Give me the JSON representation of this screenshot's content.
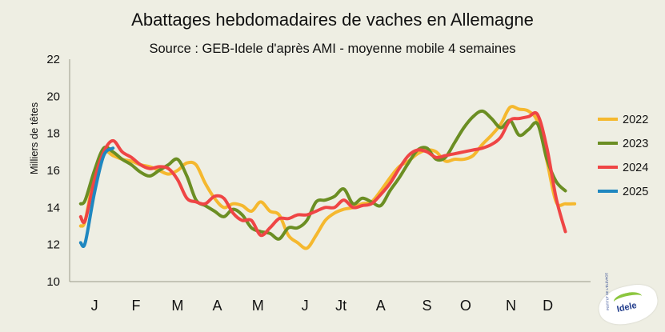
{
  "chart_data": {
    "type": "line",
    "title": "Abattages hebdomadaires de vaches en Allemagne",
    "subtitle": "Source : GEB-Idele d'après AMI - moyenne mobile 4 semaines",
    "xlabel": "",
    "ylabel": "Milliers de têtes",
    "ylim": [
      10,
      22
    ],
    "yticks": [
      10,
      12,
      14,
      16,
      18,
      20,
      22
    ],
    "xlim": [
      0,
      52
    ],
    "x_tick_labels": [
      {
        "label": "J",
        "week": 2
      },
      {
        "label": "F",
        "week": 6.5
      },
      {
        "label": "M",
        "week": 11
      },
      {
        "label": "A",
        "week": 15.3
      },
      {
        "label": "M",
        "week": 19.7
      },
      {
        "label": "J",
        "week": 24.8
      },
      {
        "label": "Jt",
        "week": 28.7
      },
      {
        "label": "A",
        "week": 33
      },
      {
        "label": "S",
        "week": 38
      },
      {
        "label": "O",
        "week": 42.2
      },
      {
        "label": "N",
        "week": 47.1
      },
      {
        "label": "D",
        "week": 51.1
      }
    ],
    "grid": false,
    "legend_position": "right",
    "series": [
      {
        "name": "2022",
        "color": "#f5b82e",
        "x": [
          0.5,
          1,
          2,
          3,
          4,
          5,
          6,
          7,
          8,
          9,
          10,
          11,
          12,
          13,
          14,
          15,
          16,
          17,
          18,
          19,
          20,
          21,
          22,
          23,
          24,
          25,
          26,
          27,
          28,
          29,
          30,
          31,
          32,
          33,
          34,
          35,
          36,
          37,
          38,
          39,
          40,
          41,
          42,
          43,
          44,
          45,
          46,
          47,
          48,
          49,
          50,
          51,
          52,
          53,
          54
        ],
        "y": [
          13.0,
          13.3,
          15.8,
          17.0,
          16.8,
          16.6,
          16.5,
          16.3,
          16.2,
          16.0,
          15.8,
          16.0,
          16.4,
          16.3,
          15.3,
          14.5,
          14.0,
          14.2,
          14.1,
          13.8,
          14.3,
          13.8,
          13.6,
          12.5,
          12.1,
          11.8,
          12.5,
          13.3,
          13.7,
          13.9,
          14.0,
          14.2,
          14.3,
          14.9,
          15.6,
          16.2,
          16.5,
          16.9,
          17.1,
          17.0,
          16.5,
          16.6,
          16.6,
          16.8,
          17.4,
          17.9,
          18.5,
          19.4,
          19.3,
          19.2,
          18.6,
          16.5,
          14.3,
          14.2,
          14.2
        ]
      },
      {
        "name": "2023",
        "color": "#6b8e23",
        "x": [
          0.5,
          1,
          2,
          3,
          4,
          5,
          6,
          7,
          8,
          9,
          10,
          11,
          12,
          13,
          14,
          15,
          16,
          17,
          18,
          19,
          20,
          21,
          22,
          23,
          24,
          25,
          26,
          27,
          28,
          29,
          30,
          31,
          32,
          33,
          34,
          35,
          36,
          37,
          38,
          39,
          40,
          41,
          42,
          43,
          44,
          45,
          46,
          47,
          48,
          49,
          50,
          51,
          52,
          53
        ],
        "y": [
          14.2,
          14.4,
          16.0,
          17.2,
          17.0,
          16.6,
          16.3,
          15.9,
          15.7,
          16.0,
          16.3,
          16.6,
          15.7,
          14.4,
          14.1,
          13.8,
          13.5,
          13.9,
          13.6,
          12.9,
          12.7,
          12.6,
          12.3,
          12.9,
          12.9,
          13.3,
          14.3,
          14.4,
          14.6,
          15.0,
          14.2,
          14.5,
          14.3,
          14.1,
          14.9,
          15.6,
          16.4,
          17.1,
          17.2,
          16.6,
          16.7,
          17.5,
          18.3,
          18.9,
          19.2,
          18.8,
          18.3,
          18.7,
          17.9,
          18.2,
          18.5,
          16.6,
          15.4,
          14.9
        ]
      },
      {
        "name": "2024",
        "color": "#ef4545",
        "x": [
          0.5,
          1,
          2,
          3,
          4,
          5,
          6,
          7,
          8,
          9,
          10,
          11,
          12,
          13,
          14,
          15,
          16,
          17,
          18,
          19,
          20,
          21,
          22,
          23,
          24,
          25,
          26,
          27,
          28,
          29,
          30,
          31,
          32,
          33,
          34,
          35,
          36,
          37,
          38,
          39,
          40,
          41,
          42,
          43,
          44,
          45,
          46,
          47,
          48,
          49,
          50,
          51,
          52,
          53
        ],
        "y": [
          13.5,
          13.3,
          15.5,
          17.0,
          17.6,
          17.0,
          16.7,
          16.3,
          16.1,
          16.2,
          16.1,
          15.5,
          14.5,
          14.3,
          14.2,
          14.6,
          14.5,
          13.7,
          13.3,
          13.3,
          12.5,
          12.9,
          13.4,
          13.4,
          13.6,
          13.6,
          13.8,
          14.0,
          14.0,
          14.4,
          14.0,
          14.1,
          14.2,
          14.7,
          15.3,
          16.1,
          16.8,
          17.1,
          17.0,
          16.7,
          16.8,
          16.9,
          17.0,
          17.1,
          17.2,
          17.4,
          17.8,
          18.7,
          18.8,
          18.9,
          19.0,
          17.2,
          14.5,
          12.7
        ]
      },
      {
        "name": "2025",
        "color": "#1f87c0",
        "x": [
          0.5,
          1,
          2,
          3,
          4
        ],
        "y": [
          12.1,
          12.1,
          14.8,
          16.8,
          17.2
        ]
      }
    ]
  },
  "logo": {
    "text": "Idele",
    "small_text": "INSTITUT DE L'ÉLEVAGE"
  }
}
